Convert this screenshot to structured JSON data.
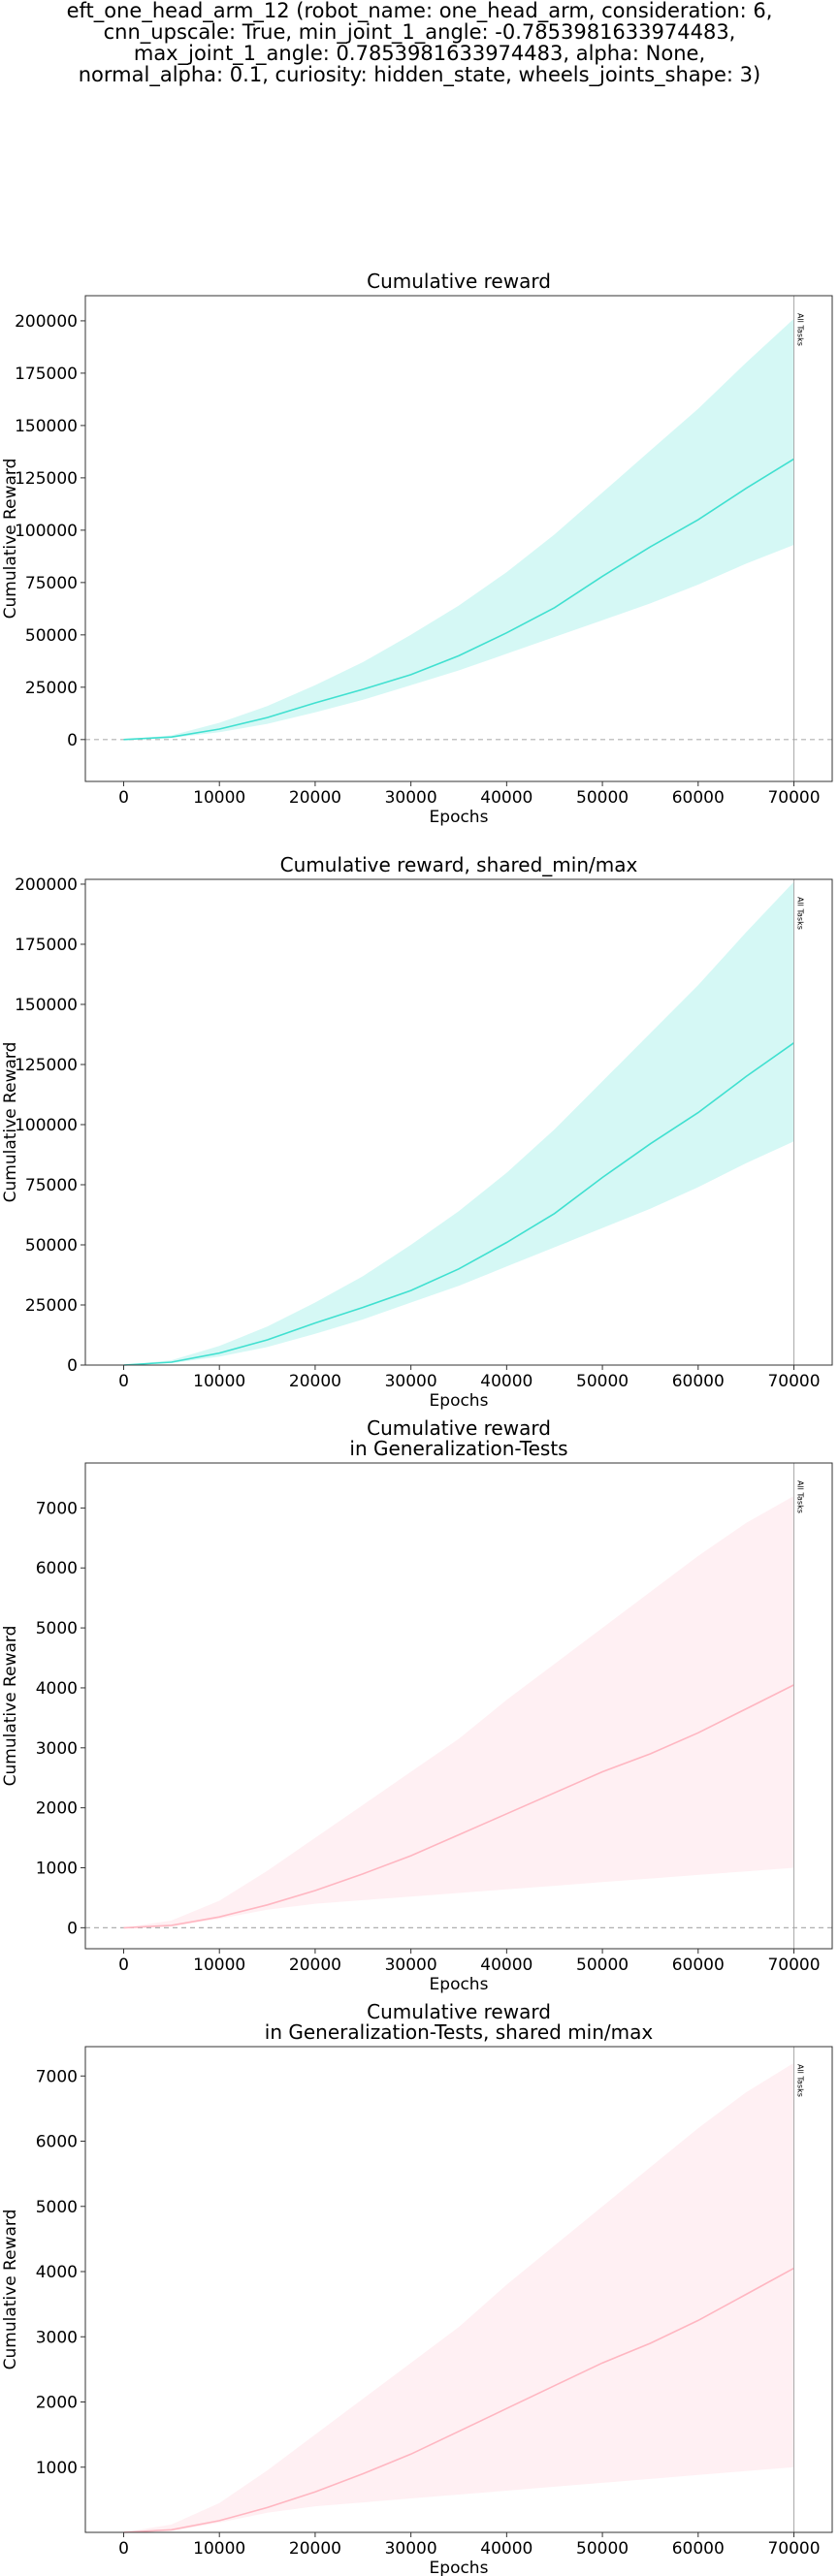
{
  "figure": {
    "suptitle_lines": [
      "eft_one_head_arm_12 (robot_name: one_head_arm, consideration: 6,",
      "cnn_upscale: True, min_joint_1_angle: -0.7853981633974483,",
      "max_joint_1_angle: 0.7853981633974483, alpha: None,",
      "normal_alpha: 0.1, curiosity: hidden_state, wheels_joints_shape: 3)"
    ]
  },
  "chart_data": [
    {
      "type": "area",
      "title": [
        "Cumulative reward"
      ],
      "xlabel": "Epochs",
      "ylabel": "Cumulative Reward",
      "xlim": [
        -4000,
        74000
      ],
      "ylim": [
        -20000,
        212000
      ],
      "xticks": [
        0,
        10000,
        20000,
        30000,
        40000,
        50000,
        60000,
        70000
      ],
      "yticks": [
        0,
        25000,
        50000,
        75000,
        100000,
        125000,
        150000,
        175000,
        200000
      ],
      "color": "#40e0d0",
      "zero_line": true,
      "vline": {
        "x": 70000,
        "label": "All Tasks"
      },
      "series": [
        {
          "x": [
            0,
            5000,
            10000,
            15000,
            20000,
            25000,
            30000,
            35000,
            40000,
            45000,
            50000,
            55000,
            60000,
            65000,
            70000
          ],
          "mean": [
            0,
            1200,
            5000,
            10500,
            17500,
            24000,
            31000,
            40000,
            51000,
            63000,
            78000,
            92000,
            105000,
            120000,
            134000
          ],
          "min": [
            0,
            800,
            3500,
            7500,
            13000,
            19000,
            26000,
            33000,
            41000,
            49000,
            57000,
            65000,
            74000,
            84000,
            93000
          ],
          "max": [
            0,
            2000,
            8000,
            16000,
            26000,
            37000,
            50000,
            64000,
            80000,
            98000,
            118000,
            138000,
            158000,
            180000,
            201000
          ]
        }
      ]
    },
    {
      "type": "area",
      "title": [
        "Cumulative reward, shared_min/max"
      ],
      "xlabel": "Epochs",
      "ylabel": "Cumulative Reward",
      "xlim": [
        -4000,
        74000
      ],
      "ylim": [
        0,
        202000
      ],
      "xticks": [
        0,
        10000,
        20000,
        30000,
        40000,
        50000,
        60000,
        70000
      ],
      "yticks": [
        0,
        25000,
        50000,
        75000,
        100000,
        125000,
        150000,
        175000,
        200000
      ],
      "color": "#40e0d0",
      "zero_line": false,
      "vline": {
        "x": 70000,
        "label": "All Tasks"
      },
      "series": [
        {
          "x": [
            0,
            5000,
            10000,
            15000,
            20000,
            25000,
            30000,
            35000,
            40000,
            45000,
            50000,
            55000,
            60000,
            65000,
            70000
          ],
          "mean": [
            0,
            1200,
            5000,
            10500,
            17500,
            24000,
            31000,
            40000,
            51000,
            63000,
            78000,
            92000,
            105000,
            120000,
            134000
          ],
          "min": [
            0,
            800,
            3500,
            7500,
            13000,
            19000,
            26000,
            33000,
            41000,
            49000,
            57000,
            65000,
            74000,
            84000,
            93000
          ],
          "max": [
            0,
            2000,
            8000,
            16000,
            26000,
            37000,
            50000,
            64000,
            80000,
            98000,
            118000,
            138000,
            158000,
            180000,
            201000
          ]
        }
      ]
    },
    {
      "type": "area",
      "title": [
        "Cumulative reward",
        "in Generalization-Tests"
      ],
      "xlabel": "Epochs",
      "ylabel": "Cumulative Reward",
      "xlim": [
        -4000,
        74000
      ],
      "ylim": [
        -350,
        7750
      ],
      "xticks": [
        0,
        10000,
        20000,
        30000,
        40000,
        50000,
        60000,
        70000
      ],
      "yticks": [
        0,
        1000,
        2000,
        3000,
        4000,
        5000,
        6000,
        7000
      ],
      "color": "#ffb6c1",
      "zero_line": true,
      "vline": {
        "x": 70000,
        "label": "All Tasks"
      },
      "series": [
        {
          "x": [
            0,
            5000,
            10000,
            15000,
            20000,
            25000,
            30000,
            35000,
            40000,
            45000,
            50000,
            55000,
            60000,
            65000,
            70000
          ],
          "mean": [
            0,
            40,
            180,
            380,
            620,
            900,
            1200,
            1550,
            1900,
            2250,
            2600,
            2900,
            3250,
            3650,
            4050
          ],
          "min": [
            0,
            20,
            150,
            300,
            400,
            460,
            520,
            580,
            640,
            700,
            760,
            820,
            880,
            940,
            1000
          ],
          "max": [
            0,
            120,
            450,
            950,
            1500,
            2050,
            2600,
            3150,
            3800,
            4400,
            5000,
            5600,
            6200,
            6750,
            7200
          ]
        }
      ]
    },
    {
      "type": "area",
      "title": [
        "Cumulative reward",
        "in Generalization-Tests, shared min/max"
      ],
      "xlabel": "Epochs",
      "ylabel": "Cumulative Reward",
      "xlim": [
        -4000,
        74000
      ],
      "ylim": [
        0,
        7450
      ],
      "xticks": [
        0,
        10000,
        20000,
        30000,
        40000,
        50000,
        60000,
        70000
      ],
      "yticks": [
        1000,
        2000,
        3000,
        4000,
        5000,
        6000,
        7000
      ],
      "color": "#ffb6c1",
      "zero_line": false,
      "vline": {
        "x": 70000,
        "label": "All Tasks"
      },
      "series": [
        {
          "x": [
            0,
            5000,
            10000,
            15000,
            20000,
            25000,
            30000,
            35000,
            40000,
            45000,
            50000,
            55000,
            60000,
            65000,
            70000
          ],
          "mean": [
            0,
            40,
            180,
            380,
            620,
            900,
            1200,
            1550,
            1900,
            2250,
            2600,
            2900,
            3250,
            3650,
            4050
          ],
          "min": [
            0,
            20,
            150,
            300,
            400,
            460,
            520,
            580,
            640,
            700,
            760,
            820,
            880,
            940,
            1000
          ],
          "max": [
            0,
            120,
            450,
            950,
            1500,
            2050,
            2600,
            3150,
            3800,
            4400,
            5000,
            5600,
            6200,
            6750,
            7200
          ]
        }
      ]
    }
  ]
}
